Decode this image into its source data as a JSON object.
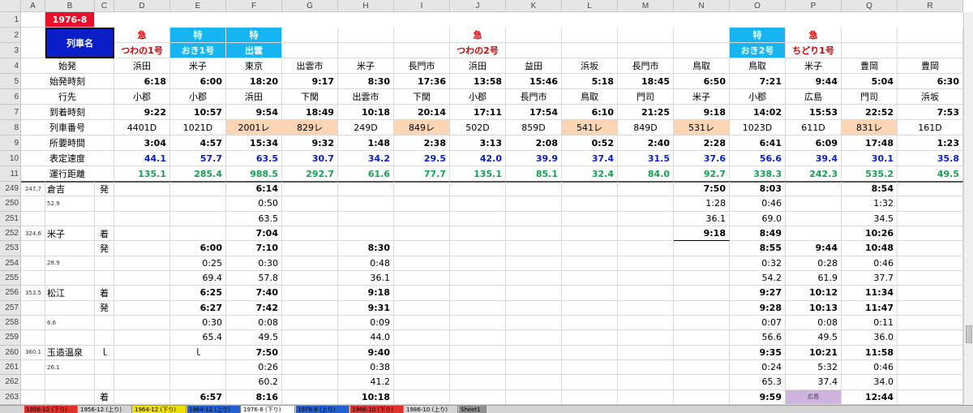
{
  "sheet": {
    "columns": [
      "A",
      "B",
      "C",
      "D",
      "E",
      "F",
      "G",
      "H",
      "I",
      "J",
      "K",
      "L",
      "M",
      "N",
      "O",
      "P",
      "Q",
      "R"
    ],
    "row_numbers": [
      "1",
      "2",
      "3",
      "4",
      "5",
      "6",
      "7",
      "8",
      "9",
      "10",
      "11",
      "249",
      "250",
      "251",
      "252",
      "253",
      "254",
      "255",
      "256",
      "257",
      "258",
      "259",
      "260",
      "261",
      "262",
      "263"
    ],
    "header": {
      "title": "1976-8",
      "train_name_label": "列車名",
      "types": {
        "D": "急",
        "E": "特",
        "F": "特",
        "J": "急",
        "O": "特",
        "P": "急"
      },
      "names": {
        "D": "つわの1号",
        "E": "おき1号",
        "F": "出雲",
        "J": "つわの2号",
        "O": "おき2号",
        "P": "ちどり1号"
      },
      "row_labels": [
        "始発",
        "始発時刻",
        "行先",
        "到着時刻",
        "列車番号",
        "所要時間",
        "表定速度",
        "運行距離"
      ],
      "origin": [
        "浜田",
        "米子",
        "東京",
        "出雲市",
        "米子",
        "長門市",
        "浜田",
        "益田",
        "浜坂",
        "長門市",
        "鳥取",
        "鳥取",
        "米子",
        "豊岡",
        "豊岡"
      ],
      "dep_time": [
        "6:18",
        "6:00",
        "18:20",
        "9:17",
        "8:30",
        "17:36",
        "13:58",
        "15:46",
        "5:18",
        "18:45",
        "6:50",
        "7:21",
        "9:44",
        "5:04",
        "6:30"
      ],
      "dest": [
        "小郡",
        "小郡",
        "浜田",
        "下関",
        "出雲市",
        "下関",
        "小郡",
        "長門市",
        "鳥取",
        "門司",
        "米子",
        "小郡",
        "広島",
        "門司",
        "浜坂"
      ],
      "arr_time": [
        "9:22",
        "10:57",
        "9:54",
        "18:49",
        "10:18",
        "20:14",
        "17:11",
        "17:54",
        "6:10",
        "21:25",
        "9:18",
        "14:02",
        "15:53",
        "22:52",
        "7:53"
      ],
      "train_no": [
        "4401D",
        "1021D",
        "2001レ",
        "829レ",
        "249D",
        "849レ",
        "502D",
        "859D",
        "541レ",
        "849D",
        "531レ",
        "1023D",
        "611D",
        "831レ",
        "161D"
      ],
      "duration": [
        "3:04",
        "4:57",
        "15:34",
        "9:32",
        "1:48",
        "2:38",
        "3:13",
        "2:08",
        "0:52",
        "2:40",
        "2:28",
        "6:41",
        "6:09",
        "17:48",
        "1:23"
      ],
      "speed": [
        "44.1",
        "57.7",
        "63.5",
        "30.7",
        "34.2",
        "29.5",
        "42.0",
        "39.9",
        "37.4",
        "31.5",
        "37.6",
        "56.6",
        "39.4",
        "30.1",
        "35.8"
      ],
      "distance": [
        "135.1",
        "285.4",
        "988.5",
        "292.7",
        "61.6",
        "77.7",
        "135.1",
        "85.1",
        "32.4",
        "84.0",
        "92.7",
        "338.3",
        "242.3",
        "535.2",
        "49.5"
      ]
    },
    "body": {
      "stations": {
        "yoshikawa_label": "倉吉",
        "yoshikawa_prefix": "247.7",
        "yonago_km": "324.6",
        "yonago": "米子",
        "matsue_km": "353.5",
        "matsue": "松江",
        "tamatsukuri_km": "360.1",
        "tamatsukuri": "玉造温泉",
        "seg1": "52.9",
        "seg2": "28.9",
        "seg3": "6.6",
        "seg4": "26.1",
        "arrive": "着",
        "depart": "発",
        "pass": "ｌ"
      },
      "cells": {
        "249": {
          "C": "発",
          "F": "6:14",
          "N": "7:50",
          "O": "8:03",
          "Q": "8:54"
        },
        "250": {
          "F": "0:50",
          "N": "1:28",
          "O": "0:46",
          "Q": "1:32"
        },
        "251": {
          "F": "63.5",
          "N": "36.1",
          "O": "69.0",
          "Q": "34.5"
        },
        "252": {
          "C": "着",
          "F": "7:04",
          "N": "9:18",
          "O": "8:49",
          "Q": "10:26"
        },
        "253": {
          "C": "発",
          "E": "6:00",
          "F": "7:10",
          "H": "8:30",
          "O": "8:55",
          "P": "9:44",
          "Q": "10:48"
        },
        "254": {
          "E": "0:25",
          "F": "0:30",
          "H": "0:48",
          "O": "0:32",
          "P": "0:28",
          "Q": "0:46"
        },
        "255": {
          "E": "69.4",
          "F": "57.8",
          "H": "36.1",
          "O": "54.2",
          "P": "61.9",
          "Q": "37.7"
        },
        "256": {
          "C": "着",
          "E": "6:25",
          "F": "7:40",
          "H": "9:18",
          "O": "9:27",
          "P": "10:12",
          "Q": "11:34"
        },
        "257": {
          "C": "発",
          "E": "6:27",
          "F": "7:42",
          "H": "9:31",
          "O": "9:28",
          "P": "10:13",
          "Q": "11:47"
        },
        "258": {
          "E": "0:30",
          "F": "0:08",
          "H": "0:09",
          "O": "0:07",
          "P": "0:08",
          "Q": "0:11"
        },
        "259": {
          "E": "65.4",
          "F": "49.5",
          "H": "44.0",
          "O": "56.6",
          "P": "49.5",
          "Q": "36.0"
        },
        "260": {
          "C": "ｌ",
          "E": "ｌ",
          "F": "7:50",
          "H": "9:40",
          "O": "9:35",
          "P": "10:21",
          "Q": "11:58"
        },
        "261": {
          "F": "0:26",
          "H": "0:38",
          "O": "0:24",
          "P": "5:32",
          "Q": "0:46"
        },
        "262": {
          "F": "60.2",
          "H": "41.2",
          "O": "65.3",
          "P": "37.4",
          "Q": "34.0"
        },
        "263": {
          "C": "着",
          "E": "6:57",
          "F": "8:16",
          "H": "10:18",
          "O": "9:59",
          "P": "広島",
          "Q": "12:44"
        }
      }
    },
    "tabs": [
      {
        "label": "1956-12 (下り)",
        "color": "#e0302c"
      },
      {
        "label": "1956-12 (上り)",
        "color": "#d4d4d4"
      },
      {
        "label": "1964-12 (下り)",
        "color": "#f0e000"
      },
      {
        "label": "1964-12 (上り)",
        "color": "#2060d0"
      },
      {
        "label": "1976-8 (下り)",
        "color": "#ffffff"
      },
      {
        "label": "1976-8 (上り)",
        "color": "#2060d0"
      },
      {
        "label": "1986-10 (下り)",
        "color": "#e0302c"
      },
      {
        "label": "1986-10 (上り)",
        "color": "#d4d4d4"
      },
      {
        "label": "Sheet1",
        "color": "#909090"
      }
    ],
    "colors": {
      "title_bg": "#e8102a",
      "name_bg": "#0a1ec8",
      "ltd_bg": "#16b4f0",
      "peach": "#fcd5b5",
      "lav": "#d0b4e0"
    }
  }
}
